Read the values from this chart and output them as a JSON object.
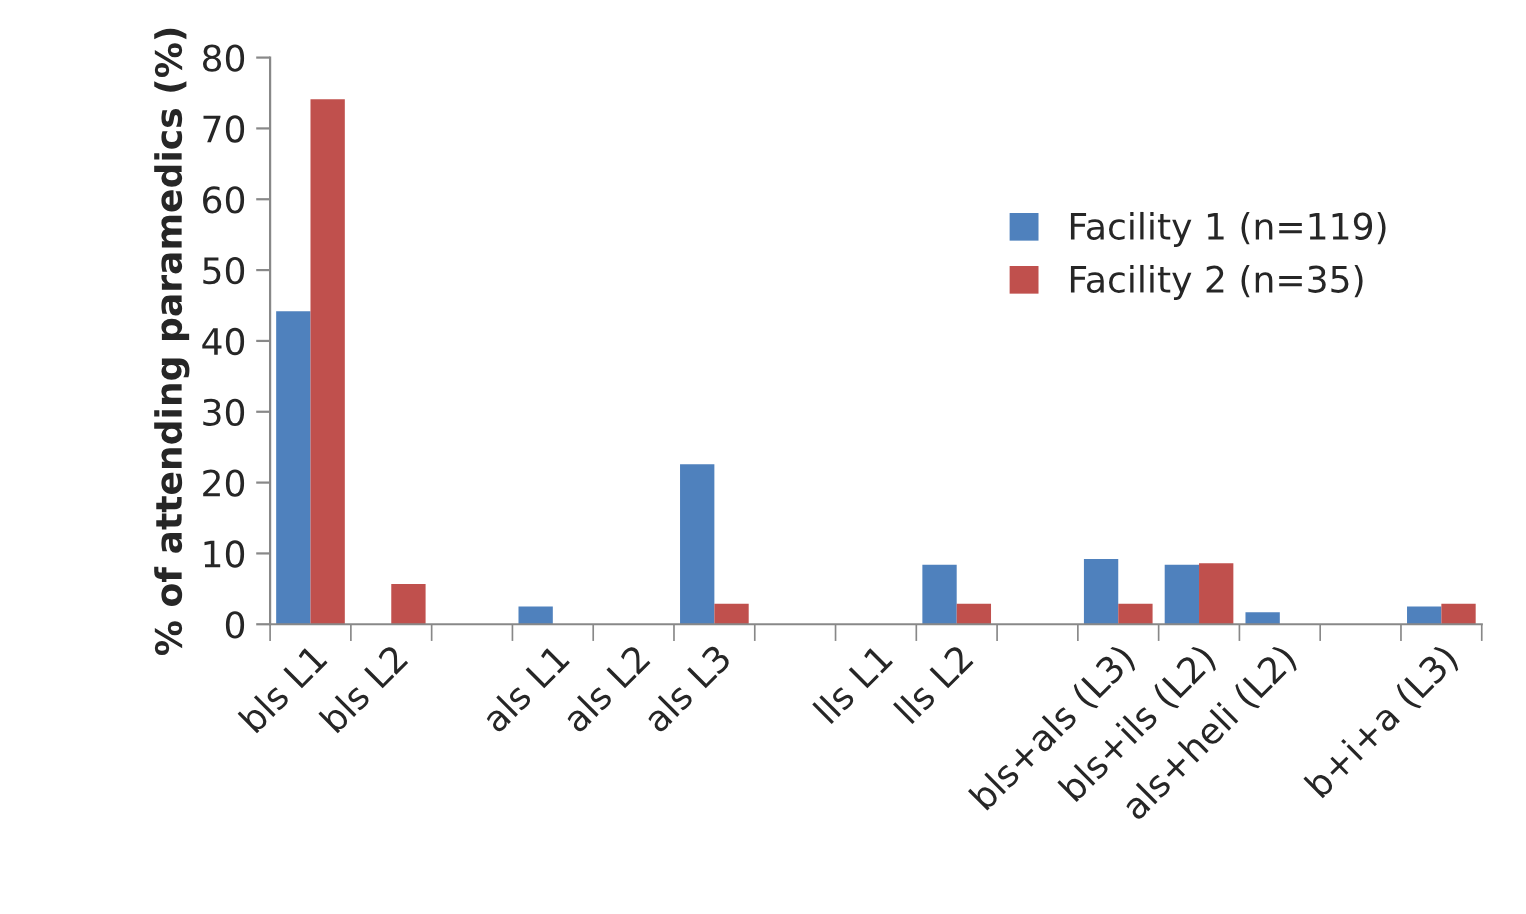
{
  "chart_data": {
    "type": "bar",
    "ylabel": "% of attending paramedics (%)",
    "categories": [
      "bls L1",
      "bls L2",
      null,
      "als L1",
      "als L2",
      "als L3",
      null,
      "lls L1",
      "lls L2",
      null,
      "bls+als (L3)",
      "bls+ils (L2)",
      "als+heli (L2)",
      null,
      "b+i+a (L3)"
    ],
    "series": [
      {
        "name": "Facility 1 (n=119)",
        "color": "#4f81bd",
        "values": [
          44.2,
          0,
          0,
          2.5,
          0,
          22.6,
          0,
          0,
          8.4,
          0,
          9.2,
          8.4,
          1.7,
          0,
          2.5
        ]
      },
      {
        "name": "Facility 2 (n=35)",
        "color": "#c0504d",
        "values": [
          74.1,
          5.7,
          0,
          0,
          0,
          2.9,
          0,
          0,
          2.9,
          0,
          2.9,
          8.6,
          0,
          0,
          2.9
        ]
      }
    ],
    "ylim": [
      0,
      80
    ],
    "yticks": [
      0,
      10,
      20,
      30,
      40,
      50,
      60,
      70,
      80
    ],
    "grid": false,
    "legend": "right"
  }
}
